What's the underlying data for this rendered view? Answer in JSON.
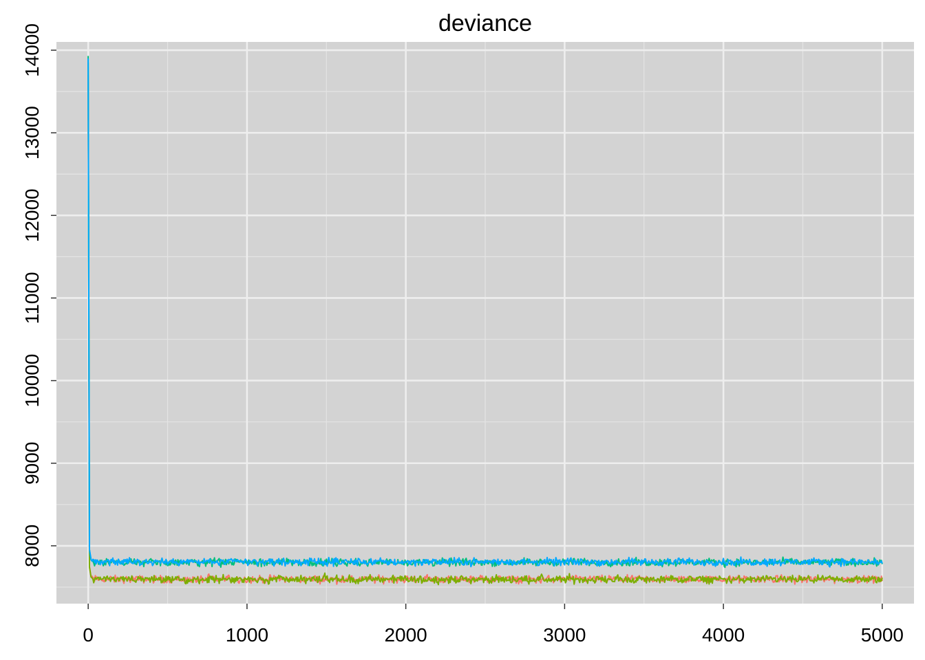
{
  "chart_data": {
    "type": "line",
    "title": "deviance",
    "xlabel": "",
    "ylabel": "",
    "xlim": [
      -200,
      5200
    ],
    "ylim": [
      7300,
      14100
    ],
    "x_ticks": [
      0,
      1000,
      2000,
      3000,
      4000,
      5000
    ],
    "x_tick_labels": [
      "0",
      "1000",
      "2000",
      "3000",
      "4000",
      "5000"
    ],
    "y_ticks": [
      8000,
      9000,
      10000,
      11000,
      12000,
      13000,
      14000
    ],
    "y_tick_labels": [
      "8000",
      "9000",
      "10000",
      "11000",
      "12000",
      "13000",
      "14000"
    ],
    "x_minor_ticks": [
      500,
      1500,
      2500,
      3500,
      4500
    ],
    "y_minor_ticks": [
      7500,
      8500,
      9500,
      10500,
      11500,
      12500,
      13500
    ],
    "grid": true,
    "legend": "none",
    "series": [
      {
        "color": "#F8766D",
        "start": 13700,
        "level": 7595,
        "noise": 22
      },
      {
        "color": "#7CAE00",
        "start": 13850,
        "level": 7592,
        "noise": 22
      },
      {
        "color": "#00BF7D",
        "start": 13930,
        "level": 7800,
        "noise": 22
      },
      {
        "color": "#00A9FF",
        "start": 13900,
        "level": 7805,
        "noise": 22
      }
    ],
    "iterations": 5000
  }
}
